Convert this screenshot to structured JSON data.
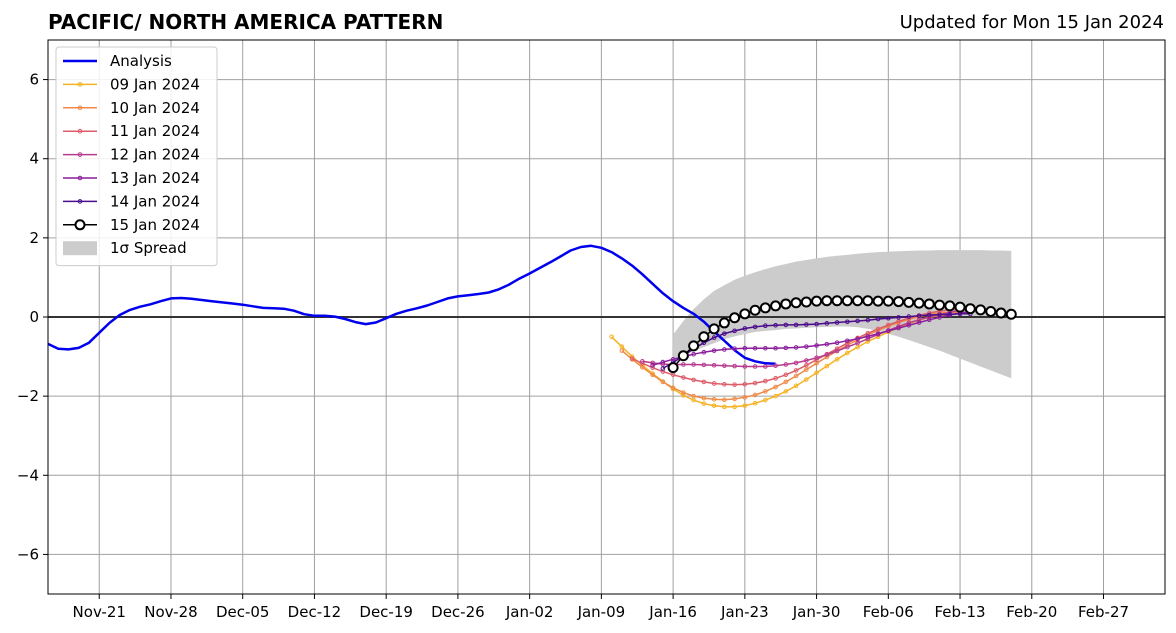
{
  "chart_data": {
    "type": "line",
    "title": "PACIFIC/ NORTH AMERICA PATTERN",
    "subtitle": "Updated for Mon 15 Jan 2024",
    "xlabel": "",
    "ylabel": "",
    "xlim": [
      "2023-11-16",
      "2024-03-04"
    ],
    "ylim": [
      -7,
      7
    ],
    "y_ticks": [
      -6,
      -4,
      -2,
      0,
      2,
      4,
      6
    ],
    "y_tick_labels": [
      "−6",
      "−4",
      "−2",
      "0",
      "2",
      "4",
      "6"
    ],
    "x_ticks": [
      "2023-11-21",
      "2023-11-28",
      "2023-12-05",
      "2023-12-12",
      "2023-12-19",
      "2023-12-26",
      "2024-01-02",
      "2024-01-09",
      "2024-01-16",
      "2024-01-23",
      "2024-01-30",
      "2024-02-06",
      "2024-02-13",
      "2024-02-20",
      "2024-02-27"
    ],
    "x_tick_labels": [
      "Nov-21",
      "Nov-28",
      "Dec-05",
      "Dec-12",
      "Dec-19",
      "Dec-26",
      "Jan-02",
      "Jan-09",
      "Jan-16",
      "Jan-23",
      "Jan-30",
      "Feb-06",
      "Feb-13",
      "Feb-20",
      "Feb-27"
    ],
    "grid": true,
    "legend_position": "top-left",
    "series": [
      {
        "name": "Analysis",
        "color": "#0000ee",
        "start_date": "2023-11-16",
        "values": [
          -0.68,
          -0.8,
          -0.82,
          -0.78,
          -0.65,
          -0.4,
          -0.15,
          0.05,
          0.18,
          0.26,
          0.32,
          0.4,
          0.47,
          0.48,
          0.46,
          0.43,
          0.4,
          0.37,
          0.34,
          0.31,
          0.27,
          0.23,
          0.22,
          0.21,
          0.16,
          0.07,
          0.03,
          0.03,
          0.01,
          -0.05,
          -0.13,
          -0.18,
          -0.14,
          -0.03,
          0.08,
          0.16,
          0.22,
          0.29,
          0.38,
          0.47,
          0.52,
          0.55,
          0.58,
          0.62,
          0.7,
          0.82,
          0.97,
          1.1,
          1.24,
          1.38,
          1.53,
          1.68,
          1.77,
          1.8,
          1.75,
          1.64,
          1.48,
          1.3,
          1.08,
          0.84,
          0.6,
          0.4,
          0.23,
          0.08,
          -0.12,
          -0.37,
          -0.6,
          -0.84,
          -1.03,
          -1.12,
          -1.17,
          -1.18
        ]
      },
      {
        "name": "09 Jan 2024",
        "color": "#f5b324",
        "start_date": "2024-01-10",
        "values": [
          -0.5,
          -0.75,
          -1.0,
          -1.22,
          -1.43,
          -1.63,
          -1.82,
          -1.98,
          -2.1,
          -2.19,
          -2.24,
          -2.27,
          -2.27,
          -2.24,
          -2.18,
          -2.1,
          -2.0,
          -1.88,
          -1.74,
          -1.58,
          -1.41,
          -1.24,
          -1.07,
          -0.91,
          -0.76,
          -0.62,
          -0.5,
          -0.38,
          -0.27,
          -0.17,
          -0.08,
          -0.01,
          0.04,
          0.06
        ]
      },
      {
        "name": "10 Jan 2024",
        "color": "#f08a48",
        "start_date": "2024-01-11",
        "values": [
          -0.85,
          -1.07,
          -1.27,
          -1.46,
          -1.64,
          -1.79,
          -1.91,
          -2.0,
          -2.05,
          -2.08,
          -2.09,
          -2.07,
          -2.03,
          -1.97,
          -1.88,
          -1.77,
          -1.64,
          -1.49,
          -1.33,
          -1.17,
          -1.01,
          -0.86,
          -0.71,
          -0.58,
          -0.45,
          -0.34,
          -0.23,
          -0.14,
          -0.06,
          0.01,
          0.06,
          0.1,
          0.12,
          0.12
        ]
      },
      {
        "name": "11 Jan 2024",
        "color": "#dd5e6a",
        "start_date": "2024-01-12",
        "values": [
          -1.05,
          -1.17,
          -1.28,
          -1.38,
          -1.46,
          -1.53,
          -1.59,
          -1.64,
          -1.68,
          -1.7,
          -1.71,
          -1.7,
          -1.67,
          -1.62,
          -1.55,
          -1.46,
          -1.35,
          -1.22,
          -1.08,
          -0.94,
          -0.8,
          -0.66,
          -0.53,
          -0.41,
          -0.3,
          -0.2,
          -0.11,
          -0.03,
          0.04,
          0.1,
          0.15,
          0.18,
          0.2,
          0.2
        ]
      },
      {
        "name": "12 Jan 2024",
        "color": "#b83a8e",
        "start_date": "2024-01-13",
        "values": [
          -1.12,
          -1.16,
          -1.19,
          -1.2,
          -1.2,
          -1.2,
          -1.21,
          -1.22,
          -1.23,
          -1.24,
          -1.25,
          -1.25,
          -1.25,
          -1.23,
          -1.2,
          -1.16,
          -1.1,
          -1.03,
          -0.95,
          -0.86,
          -0.76,
          -0.66,
          -0.55,
          -0.44,
          -0.34,
          -0.24,
          -0.15,
          -0.07,
          0.0,
          0.06,
          0.12,
          0.17,
          0.2
        ]
      },
      {
        "name": "13 Jan 2024",
        "color": "#8c1e9e",
        "start_date": "2024-01-14",
        "values": [
          -1.22,
          -1.14,
          -1.07,
          -1.0,
          -0.94,
          -0.89,
          -0.85,
          -0.82,
          -0.8,
          -0.79,
          -0.79,
          -0.79,
          -0.79,
          -0.78,
          -0.77,
          -0.75,
          -0.72,
          -0.69,
          -0.65,
          -0.6,
          -0.55,
          -0.49,
          -0.42,
          -0.35,
          -0.28,
          -0.21,
          -0.14,
          -0.07,
          -0.01,
          0.05,
          0.1,
          0.14
        ]
      },
      {
        "name": "14 Jan 2024",
        "color": "#4b0b8c",
        "start_date": "2024-01-15",
        "values": [
          -1.3,
          -1.15,
          -0.98,
          -0.8,
          -0.65,
          -0.52,
          -0.42,
          -0.35,
          -0.29,
          -0.25,
          -0.22,
          -0.21,
          -0.2,
          -0.2,
          -0.19,
          -0.18,
          -0.16,
          -0.14,
          -0.12,
          -0.1,
          -0.08,
          -0.05,
          -0.03,
          -0.01,
          0.01,
          0.03,
          0.05,
          0.06,
          0.07,
          0.08,
          0.08
        ]
      },
      {
        "name": "15 Jan 2024",
        "color": "#000000",
        "start_date": "2024-01-16",
        "values": [
          -1.28,
          -0.98,
          -0.73,
          -0.5,
          -0.3,
          -0.15,
          -0.02,
          0.08,
          0.17,
          0.23,
          0.28,
          0.33,
          0.36,
          0.38,
          0.4,
          0.41,
          0.41,
          0.41,
          0.41,
          0.41,
          0.4,
          0.4,
          0.39,
          0.37,
          0.35,
          0.33,
          0.3,
          0.28,
          0.25,
          0.21,
          0.18,
          0.14,
          0.1,
          0.07
        ]
      }
    ],
    "spread": {
      "name": "1σ Spread",
      "color": "#cccccc",
      "start_date": "2024-01-16",
      "upper": [
        -0.45,
        -0.1,
        0.2,
        0.45,
        0.66,
        0.8,
        0.94,
        1.04,
        1.13,
        1.21,
        1.28,
        1.34,
        1.4,
        1.44,
        1.48,
        1.52,
        1.55,
        1.57,
        1.6,
        1.62,
        1.64,
        1.65,
        1.66,
        1.67,
        1.68,
        1.68,
        1.69,
        1.69,
        1.69,
        1.69,
        1.69,
        1.68,
        1.68,
        1.67
      ],
      "lower": [
        -1.2,
        -0.98,
        -0.86,
        -0.76,
        -0.66,
        -0.56,
        -0.49,
        -0.43,
        -0.38,
        -0.35,
        -0.33,
        -0.3,
        -0.29,
        -0.27,
        -0.26,
        -0.25,
        -0.24,
        -0.24,
        -0.26,
        -0.3,
        -0.35,
        -0.42,
        -0.5,
        -0.58,
        -0.67,
        -0.76,
        -0.85,
        -0.95,
        -1.05,
        -1.15,
        -1.25,
        -1.35,
        -1.45,
        -1.55
      ]
    },
    "reference_line_y": 0
  }
}
